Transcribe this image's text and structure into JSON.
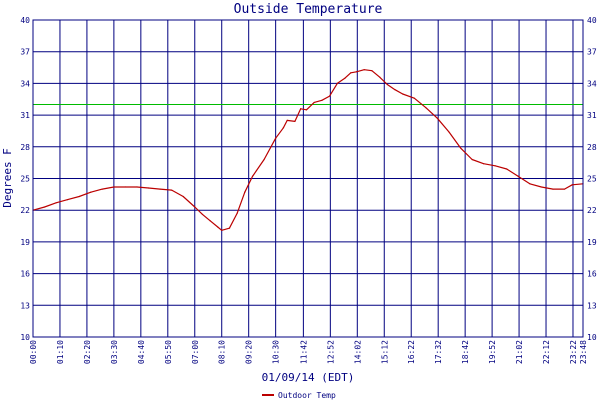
{
  "chart_data": {
    "type": "line",
    "title": "Outside Temperature",
    "xlabel": "01/09/14 (EDT)",
    "ylabel": "Degrees F",
    "ylim": [
      10,
      40
    ],
    "yticks": [
      10,
      13,
      16,
      19,
      22,
      25,
      28,
      31,
      34,
      37,
      40
    ],
    "x_range": [
      "00:00",
      "23:48"
    ],
    "xticks": [
      "00:00",
      "01:10",
      "02:20",
      "03:30",
      "04:40",
      "05:50",
      "07:00",
      "08:10",
      "09:20",
      "10:30",
      "11:42",
      "12:52",
      "14:02",
      "15:12",
      "16:22",
      "17:32",
      "18:42",
      "19:52",
      "21:02",
      "22:12",
      "23:22",
      "23:48"
    ],
    "grid": true,
    "legend_position": "bottom-center",
    "reference_line": {
      "value": 32,
      "color": "#00bb00"
    },
    "series": [
      {
        "name": "Outdoor Temp",
        "color": "#bb0000",
        "points": [
          [
            "00:00",
            22.0
          ],
          [
            "00:30",
            22.3
          ],
          [
            "01:00",
            22.7
          ],
          [
            "01:30",
            23.0
          ],
          [
            "02:00",
            23.3
          ],
          [
            "02:30",
            23.7
          ],
          [
            "03:00",
            24.0
          ],
          [
            "03:30",
            24.2
          ],
          [
            "04:00",
            24.2
          ],
          [
            "04:30",
            24.2
          ],
          [
            "05:00",
            24.1
          ],
          [
            "05:30",
            24.0
          ],
          [
            "06:00",
            23.9
          ],
          [
            "06:30",
            23.3
          ],
          [
            "07:00",
            22.3
          ],
          [
            "07:20",
            21.6
          ],
          [
            "07:40",
            21.0
          ],
          [
            "08:00",
            20.4
          ],
          [
            "08:10",
            20.1
          ],
          [
            "08:30",
            20.3
          ],
          [
            "08:50",
            21.7
          ],
          [
            "09:10",
            23.7
          ],
          [
            "09:30",
            25.2
          ],
          [
            "10:00",
            26.8
          ],
          [
            "10:30",
            28.8
          ],
          [
            "10:50",
            29.8
          ],
          [
            "11:00",
            30.5
          ],
          [
            "11:20",
            30.4
          ],
          [
            "11:35",
            31.6
          ],
          [
            "11:50",
            31.5
          ],
          [
            "12:10",
            32.2
          ],
          [
            "12:30",
            32.4
          ],
          [
            "12:50",
            32.8
          ],
          [
            "13:10",
            34.0
          ],
          [
            "13:30",
            34.5
          ],
          [
            "13:45",
            35.0
          ],
          [
            "14:00",
            35.1
          ],
          [
            "14:20",
            35.3
          ],
          [
            "14:40",
            35.2
          ],
          [
            "15:00",
            34.6
          ],
          [
            "15:20",
            33.9
          ],
          [
            "15:40",
            33.4
          ],
          [
            "16:00",
            33.0
          ],
          [
            "16:30",
            32.6
          ],
          [
            "17:00",
            31.7
          ],
          [
            "17:30",
            30.7
          ],
          [
            "18:00",
            29.4
          ],
          [
            "18:30",
            27.9
          ],
          [
            "19:00",
            26.8
          ],
          [
            "19:30",
            26.4
          ],
          [
            "20:00",
            26.2
          ],
          [
            "20:30",
            25.9
          ],
          [
            "21:00",
            25.2
          ],
          [
            "21:30",
            24.5
          ],
          [
            "22:00",
            24.2
          ],
          [
            "22:30",
            24.0
          ],
          [
            "23:00",
            24.0
          ],
          [
            "23:20",
            24.4
          ],
          [
            "23:48",
            24.5
          ]
        ]
      }
    ]
  }
}
